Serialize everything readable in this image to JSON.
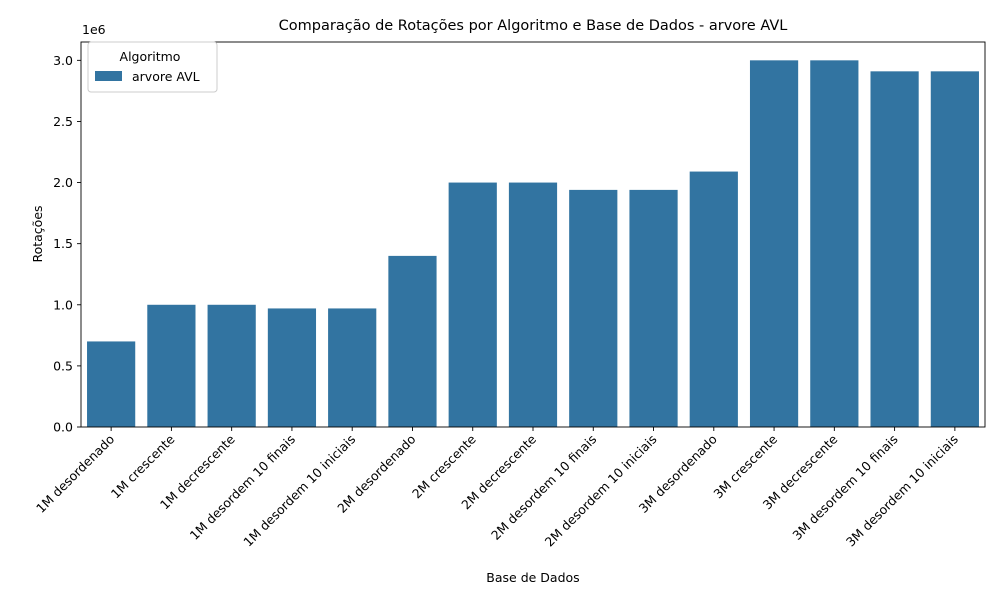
{
  "chart_data": {
    "type": "bar",
    "title": "Comparação de Rotações por Algoritmo e Base de Dados - arvore AVL",
    "xlabel": "Base de Dados",
    "ylabel": "Rotações",
    "y_offset_label": "1e6",
    "ylim": [
      0,
      3150000
    ],
    "yticks": [
      0,
      500000,
      1000000,
      1500000,
      2000000,
      2500000,
      3000000
    ],
    "ytick_labels": [
      "0.0",
      "0.5",
      "1.0",
      "1.5",
      "2.0",
      "2.5",
      "3.0"
    ],
    "grid": false,
    "legend": {
      "title": "Algoritmo",
      "placement": "top-left"
    },
    "categories": [
      "1M desordenado",
      "1M crescente",
      "1M decrescente",
      "1M desordem 10 finais",
      "1M desordem 10 iniciais",
      "2M desordenado",
      "2M crescente",
      "2M decrescente",
      "2M desordem 10 finais",
      "2M desordem 10 iniciais",
      "3M desordenado",
      "3M crescente",
      "3M decrescente",
      "3M desordem 10 finais",
      "3M desordem 10 iniciais"
    ],
    "series": [
      {
        "name": "arvore AVL",
        "color": "#3274a1",
        "values": [
          700000,
          1000000,
          1000000,
          970000,
          970000,
          1400000,
          2000000,
          2000000,
          1940000,
          1940000,
          2090000,
          3000000,
          3000000,
          2910000,
          2910000
        ]
      }
    ]
  }
}
